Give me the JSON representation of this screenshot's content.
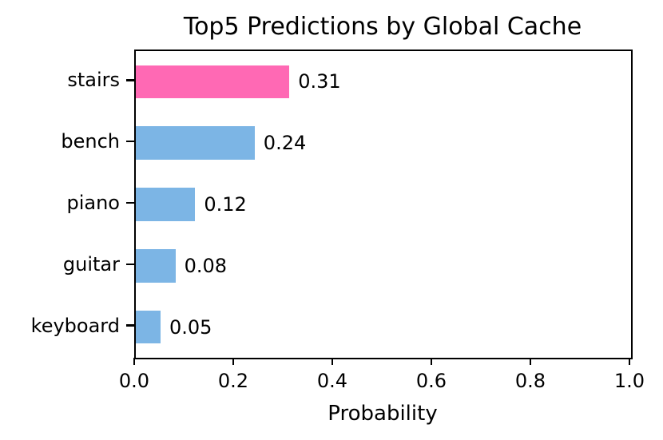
{
  "title": "Top5 Predictions by Global Cache",
  "chart_data": {
    "type": "bar",
    "orientation": "horizontal",
    "title": "Top5 Predictions by Global Cache",
    "categories": [
      "stairs",
      "bench",
      "piano",
      "guitar",
      "keyboard"
    ],
    "values": [
      0.31,
      0.24,
      0.12,
      0.08,
      0.05
    ],
    "value_labels": [
      "0.31",
      "0.24",
      "0.12",
      "0.08",
      "0.05"
    ],
    "bar_colors": [
      "#FF69B4",
      "#7CB5E5",
      "#7CB5E5",
      "#7CB5E5",
      "#7CB5E5"
    ],
    "highlight_color": "#FF69B4",
    "default_bar_color": "#7CB5E5",
    "xlabel": "Probability",
    "xlim": [
      0.0,
      1.0
    ],
    "x_ticks": [
      0.0,
      0.2,
      0.4,
      0.6,
      0.8,
      1.0
    ],
    "x_tick_labels": [
      "0.0",
      "0.2",
      "0.4",
      "0.6",
      "0.8",
      "1.0"
    ],
    "grid": false,
    "legend_position": "none",
    "text_color": "#000000",
    "axis_color": "#000000"
  }
}
